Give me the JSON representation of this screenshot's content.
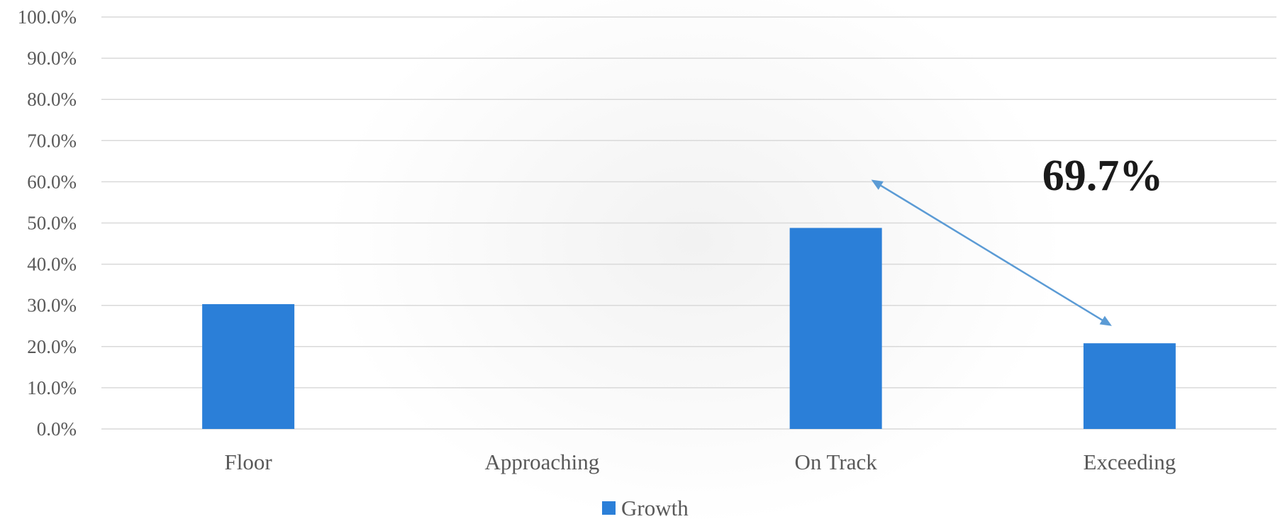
{
  "chart_data": {
    "type": "bar",
    "title": "",
    "xlabel": "",
    "ylabel": "",
    "categories": [
      "Floor",
      "Approaching",
      "On Track",
      "Exceeding"
    ],
    "series": [
      {
        "name": "Growth",
        "values": [
          30.3,
          0.0,
          48.8,
          20.8
        ],
        "color": "#2b7fd8"
      }
    ],
    "ylim": [
      0,
      100
    ],
    "y_ticks": [
      "0.0%",
      "10.0%",
      "20.0%",
      "30.0%",
      "40.0%",
      "50.0%",
      "60.0%",
      "70.0%",
      "80.0%",
      "90.0%",
      "100.0%"
    ],
    "y_unit": "%",
    "grid": true,
    "legend_position": "bottom-center",
    "annotations": [
      {
        "text": "69.7%",
        "type": "double-arrow",
        "from_category": "On Track",
        "from_value": 60.5,
        "to_category": "Exceeding",
        "to_value": 25.0,
        "color": "#5b9bd5"
      }
    ]
  }
}
